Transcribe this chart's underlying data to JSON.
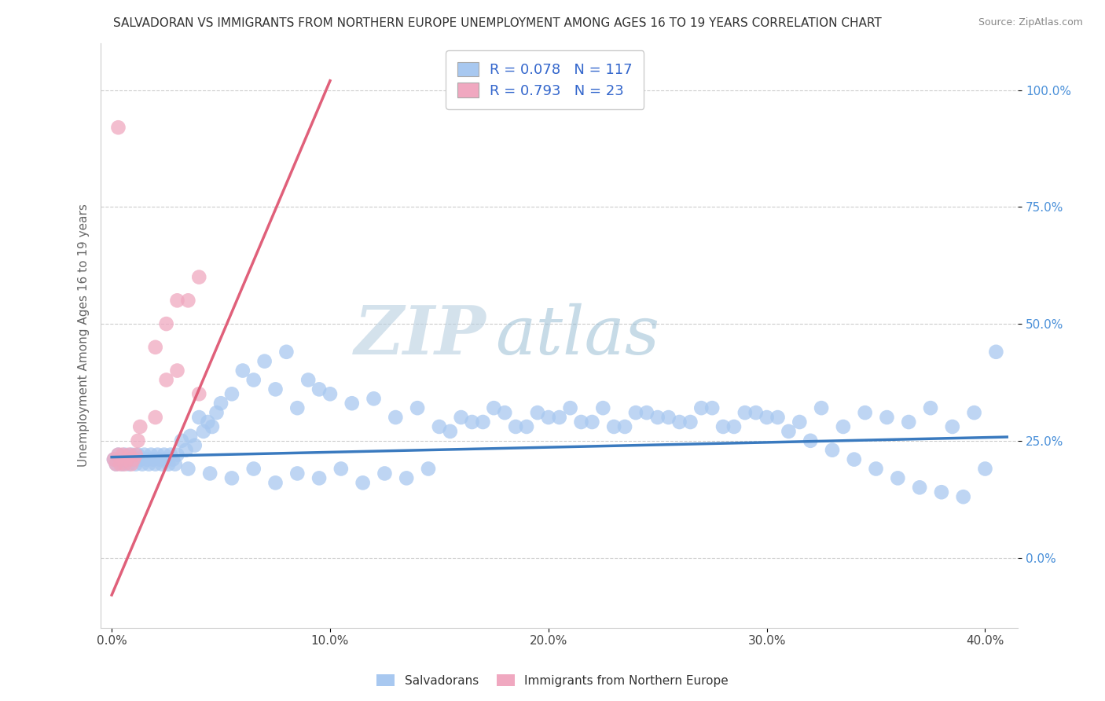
{
  "title": "SALVADORAN VS IMMIGRANTS FROM NORTHERN EUROPE UNEMPLOYMENT AMONG AGES 16 TO 19 YEARS CORRELATION CHART",
  "source": "Source: ZipAtlas.com",
  "xlabel_ticks": [
    "0.0%",
    "",
    "10.0%",
    "",
    "20.0%",
    "",
    "30.0%",
    "",
    "40.0%"
  ],
  "ylabel_ticks_vals": [
    0.0,
    0.25,
    0.5,
    0.75,
    1.0
  ],
  "ylabel_tick_labels": [
    "0.0%",
    "25.0%",
    "50.0%",
    "75.0%",
    "100.0%"
  ],
  "xlim": [
    -0.005,
    0.415
  ],
  "ylim": [
    -0.15,
    1.1
  ],
  "ylabel": "Unemployment Among Ages 16 to 19 years",
  "blue_color": "#a8c8f0",
  "pink_color": "#f0a8c0",
  "blue_line_color": "#3a7abf",
  "pink_line_color": "#e0607a",
  "legend_blue_label": "Salvadorans",
  "legend_pink_label": "Immigrants from Northern Europe",
  "R_blue": 0.078,
  "N_blue": 117,
  "R_pink": 0.793,
  "N_pink": 23,
  "watermark_ZIP": "ZIP",
  "watermark_atlas": "atlas",
  "watermark_color_ZIP": "#c0cfe0",
  "watermark_color_atlas": "#a0b8d0",
  "blue_trendline_x": [
    0.0,
    0.41
  ],
  "blue_trendline_y": [
    0.215,
    0.258
  ],
  "pink_trendline_x": [
    0.0,
    0.1
  ],
  "pink_trendline_y": [
    -0.08,
    1.02
  ],
  "grid_color": "#cccccc",
  "bg_color": "#ffffff",
  "title_fontsize": 11,
  "axis_label_fontsize": 11,
  "tick_fontsize": 11,
  "legend_R_color": "#3366cc",
  "dot_size": 180,
  "blue_scatter_x": [
    0.001,
    0.002,
    0.003,
    0.004,
    0.005,
    0.006,
    0.007,
    0.008,
    0.009,
    0.01,
    0.011,
    0.012,
    0.013,
    0.014,
    0.015,
    0.016,
    0.017,
    0.018,
    0.019,
    0.02,
    0.021,
    0.022,
    0.023,
    0.024,
    0.025,
    0.026,
    0.027,
    0.028,
    0.029,
    0.03,
    0.032,
    0.034,
    0.036,
    0.038,
    0.04,
    0.042,
    0.044,
    0.046,
    0.048,
    0.05,
    0.055,
    0.06,
    0.065,
    0.07,
    0.075,
    0.08,
    0.085,
    0.09,
    0.095,
    0.1,
    0.11,
    0.12,
    0.13,
    0.14,
    0.15,
    0.16,
    0.17,
    0.18,
    0.19,
    0.2,
    0.21,
    0.22,
    0.23,
    0.24,
    0.25,
    0.26,
    0.27,
    0.28,
    0.29,
    0.3,
    0.155,
    0.165,
    0.175,
    0.185,
    0.195,
    0.205,
    0.215,
    0.225,
    0.235,
    0.245,
    0.255,
    0.265,
    0.275,
    0.285,
    0.295,
    0.305,
    0.315,
    0.325,
    0.335,
    0.345,
    0.355,
    0.365,
    0.375,
    0.385,
    0.395,
    0.405,
    0.035,
    0.045,
    0.055,
    0.065,
    0.075,
    0.085,
    0.095,
    0.105,
    0.115,
    0.125,
    0.135,
    0.145,
    0.31,
    0.32,
    0.33,
    0.34,
    0.35,
    0.36,
    0.37,
    0.38,
    0.39,
    0.4
  ],
  "blue_scatter_y": [
    0.21,
    0.2,
    0.22,
    0.21,
    0.2,
    0.22,
    0.21,
    0.2,
    0.22,
    0.21,
    0.2,
    0.22,
    0.21,
    0.2,
    0.22,
    0.21,
    0.2,
    0.22,
    0.21,
    0.2,
    0.22,
    0.21,
    0.2,
    0.22,
    0.21,
    0.2,
    0.22,
    0.21,
    0.2,
    0.22,
    0.25,
    0.23,
    0.26,
    0.24,
    0.3,
    0.27,
    0.29,
    0.28,
    0.31,
    0.33,
    0.35,
    0.4,
    0.38,
    0.42,
    0.36,
    0.44,
    0.32,
    0.38,
    0.36,
    0.35,
    0.33,
    0.34,
    0.3,
    0.32,
    0.28,
    0.3,
    0.29,
    0.31,
    0.28,
    0.3,
    0.32,
    0.29,
    0.28,
    0.31,
    0.3,
    0.29,
    0.32,
    0.28,
    0.31,
    0.3,
    0.27,
    0.29,
    0.32,
    0.28,
    0.31,
    0.3,
    0.29,
    0.32,
    0.28,
    0.31,
    0.3,
    0.29,
    0.32,
    0.28,
    0.31,
    0.3,
    0.29,
    0.32,
    0.28,
    0.31,
    0.3,
    0.29,
    0.32,
    0.28,
    0.31,
    0.44,
    0.19,
    0.18,
    0.17,
    0.19,
    0.16,
    0.18,
    0.17,
    0.19,
    0.16,
    0.18,
    0.17,
    0.19,
    0.27,
    0.25,
    0.23,
    0.21,
    0.19,
    0.17,
    0.15,
    0.14,
    0.13,
    0.19
  ],
  "pink_scatter_x": [
    0.001,
    0.002,
    0.003,
    0.004,
    0.005,
    0.006,
    0.007,
    0.008,
    0.009,
    0.01,
    0.011,
    0.012,
    0.013,
    0.02,
    0.025,
    0.03,
    0.035,
    0.04,
    0.003,
    0.02,
    0.025,
    0.03,
    0.04
  ],
  "pink_scatter_y": [
    0.21,
    0.2,
    0.22,
    0.2,
    0.22,
    0.2,
    0.21,
    0.22,
    0.2,
    0.21,
    0.22,
    0.25,
    0.28,
    0.3,
    0.38,
    0.4,
    0.55,
    0.6,
    0.92,
    0.45,
    0.5,
    0.55,
    0.35
  ]
}
